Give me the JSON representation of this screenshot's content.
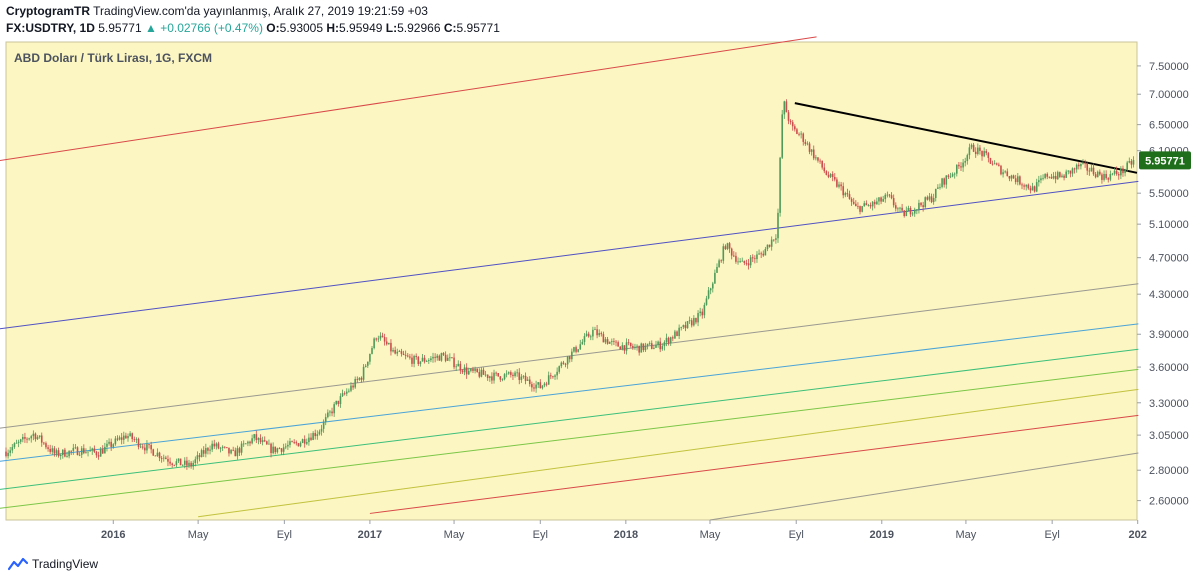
{
  "header": {
    "line1_user": "CryptogramTR",
    "line1_rest": "TradingView.com'da yayınlanmış, Aralık 27, 2019 19:21:59 +03",
    "symbol": "FX:USDTRY, 1D",
    "last": "5.95771",
    "change": "▲ +0.02766 (+0.47%)",
    "o_label": "O:",
    "o_value": "5.93005",
    "h_label": "H:",
    "h_value": "5.95949",
    "l_label": "L:",
    "l_value": "5.92966",
    "c_label": "C:",
    "c_value": "5.95771"
  },
  "chart_data": {
    "type": "candlestick",
    "title": "ABD Doları / Türk Lirası, 1G, FXCM",
    "x_range": [
      "2015-08-01",
      "2019-12-31"
    ],
    "y_range": [
      2.48,
      7.95
    ],
    "y_ticks": [
      "7.50000",
      "7.00000",
      "6.50000",
      "6.10000",
      "5.50000",
      "5.10000",
      "4.70000",
      "4.30000",
      "3.90000",
      "3.60000",
      "3.30000",
      "3.05000",
      "2.80000",
      "2.60000"
    ],
    "x_ticks": [
      {
        "label": "2016",
        "date": "2016-01-01",
        "major": true
      },
      {
        "label": "May",
        "date": "2016-05-01",
        "major": false
      },
      {
        "label": "Eyl",
        "date": "2016-09-01",
        "major": false
      },
      {
        "label": "2017",
        "date": "2017-01-01",
        "major": true
      },
      {
        "label": "May",
        "date": "2017-05-01",
        "major": false
      },
      {
        "label": "Eyl",
        "date": "2017-09-01",
        "major": false
      },
      {
        "label": "2018",
        "date": "2018-01-01",
        "major": true
      },
      {
        "label": "May",
        "date": "2018-05-01",
        "major": false
      },
      {
        "label": "Eyl",
        "date": "2018-09-01",
        "major": false
      },
      {
        "label": "2019",
        "date": "2019-01-01",
        "major": true
      },
      {
        "label": "May",
        "date": "2019-05-01",
        "major": false
      },
      {
        "label": "Eyl",
        "date": "2019-09-01",
        "major": false
      },
      {
        "label": "202",
        "date": "2020-01-01",
        "major": true
      }
    ],
    "last_price_label": "5.95771",
    "price_path": [
      [
        "2015-08-01",
        2.93
      ],
      [
        "2015-09-10",
        3.06
      ],
      [
        "2015-10-10",
        2.91
      ],
      [
        "2015-11-15",
        2.94
      ],
      [
        "2015-12-10",
        2.92
      ],
      [
        "2016-01-20",
        3.05
      ],
      [
        "2016-02-20",
        2.95
      ],
      [
        "2016-03-25",
        2.86
      ],
      [
        "2016-04-20",
        2.83
      ],
      [
        "2016-05-20",
        2.98
      ],
      [
        "2016-06-20",
        2.91
      ],
      [
        "2016-07-20",
        3.03
      ],
      [
        "2016-08-15",
        2.94
      ],
      [
        "2016-09-20",
        2.99
      ],
      [
        "2016-10-20",
        3.08
      ],
      [
        "2016-11-15",
        3.3
      ],
      [
        "2016-12-20",
        3.52
      ],
      [
        "2017-01-11",
        3.9
      ],
      [
        "2017-02-05",
        3.72
      ],
      [
        "2017-03-10",
        3.65
      ],
      [
        "2017-04-15",
        3.7
      ],
      [
        "2017-05-20",
        3.56
      ],
      [
        "2017-06-25",
        3.52
      ],
      [
        "2017-07-25",
        3.53
      ],
      [
        "2017-09-01",
        3.43
      ],
      [
        "2017-09-20",
        3.55
      ],
      [
        "2017-10-20",
        3.75
      ],
      [
        "2017-11-15",
        3.93
      ],
      [
        "2017-12-15",
        3.8
      ],
      [
        "2018-01-20",
        3.77
      ],
      [
        "2018-02-20",
        3.8
      ],
      [
        "2018-03-25",
        3.96
      ],
      [
        "2018-04-20",
        4.1
      ],
      [
        "2018-05-23",
        4.85
      ],
      [
        "2018-06-15",
        4.62
      ],
      [
        "2018-07-15",
        4.75
      ],
      [
        "2018-08-05",
        5.0
      ],
      [
        "2018-08-13",
        6.9
      ],
      [
        "2018-08-25",
        6.45
      ],
      [
        "2018-09-10",
        6.3
      ],
      [
        "2018-09-25",
        6.05
      ],
      [
        "2018-10-15",
        5.75
      ],
      [
        "2018-11-05",
        5.55
      ],
      [
        "2018-11-25",
        5.3
      ],
      [
        "2018-12-20",
        5.35
      ],
      [
        "2019-01-10",
        5.45
      ],
      [
        "2019-01-30",
        5.22
      ],
      [
        "2019-02-20",
        5.32
      ],
      [
        "2019-03-15",
        5.45
      ],
      [
        "2019-03-28",
        5.65
      ],
      [
        "2019-04-20",
        5.85
      ],
      [
        "2019-05-10",
        6.15
      ],
      [
        "2019-05-25",
        6.05
      ],
      [
        "2019-06-15",
        5.85
      ],
      [
        "2019-07-10",
        5.7
      ],
      [
        "2019-08-05",
        5.55
      ],
      [
        "2019-08-25",
        5.75
      ],
      [
        "2019-09-15",
        5.72
      ],
      [
        "2019-10-10",
        5.88
      ],
      [
        "2019-10-25",
        5.82
      ],
      [
        "2019-11-15",
        5.72
      ],
      [
        "2019-12-10",
        5.8
      ],
      [
        "2019-12-27",
        5.95771
      ]
    ],
    "lines": [
      {
        "color": "#d94848",
        "from": [
          "2015-07-20",
          5.95
        ],
        "to": [
          "2018-09-30",
          8.05
        ]
      },
      {
        "color": "#5050c4",
        "from": [
          "2015-07-20",
          3.95
        ],
        "to": [
          "2020-01-02",
          5.66
        ]
      },
      {
        "color": "#9a9890",
        "from": [
          "2015-07-20",
          3.1
        ],
        "to": [
          "2020-01-02",
          4.41
        ]
      },
      {
        "color": "#4aa3d8",
        "from": [
          "2015-07-20",
          2.86
        ],
        "to": [
          "2020-01-02",
          4.0
        ]
      },
      {
        "color": "#3cbf7a",
        "from": [
          "2015-07-20",
          2.67
        ],
        "to": [
          "2020-01-02",
          3.76
        ]
      },
      {
        "color": "#7cc646",
        "from": [
          "2015-07-20",
          2.55
        ],
        "to": [
          "2020-01-02",
          3.58
        ]
      },
      {
        "color": "#c2c23e",
        "from": [
          "2016-05-01",
          2.5
        ],
        "to": [
          "2020-01-02",
          3.41
        ]
      },
      {
        "color": "#d94848",
        "from": [
          "2017-01-01",
          2.52
        ],
        "to": [
          "2020-01-02",
          3.2
        ]
      },
      {
        "color": "#9a9890",
        "from": [
          "2018-05-01",
          2.48
        ],
        "to": [
          "2020-01-02",
          2.92
        ]
      },
      {
        "color": "#000000",
        "from": [
          "2018-08-30",
          6.85
        ],
        "to": [
          "2019-12-31",
          5.78
        ],
        "width": 2
      }
    ],
    "colors": {
      "background": "#fbf6c2",
      "up": "#4f9a58",
      "down": "#cc4b4b",
      "axis_text": "#4c525e",
      "last_price_bg": "#1f6e1b"
    }
  },
  "footer": {
    "brand": "TradingView"
  }
}
